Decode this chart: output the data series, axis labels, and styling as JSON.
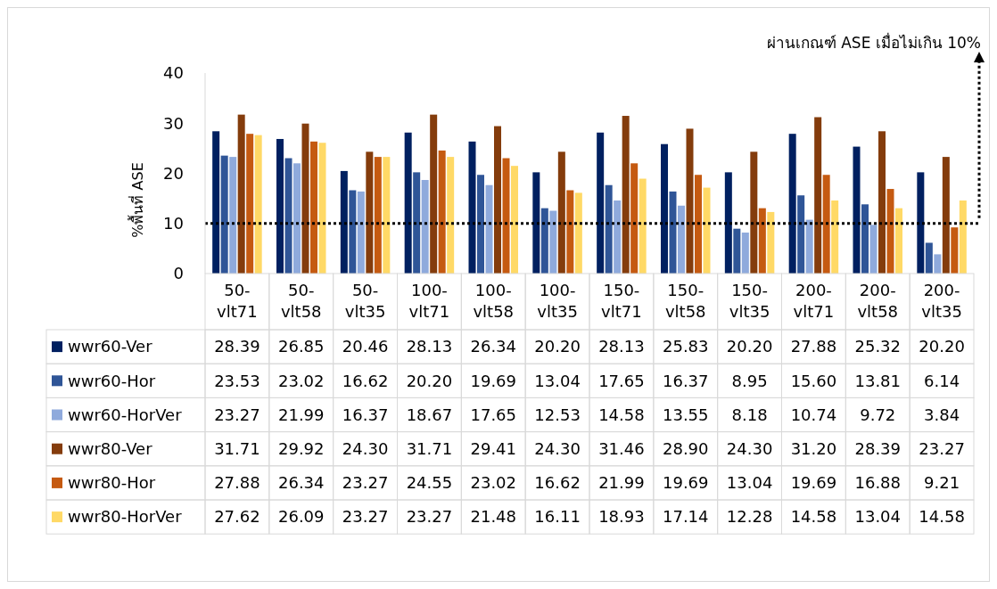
{
  "chart_data": {
    "type": "bar",
    "ylabel": "%พื้นที่ ASE",
    "ylim": [
      0,
      40
    ],
    "yticks": [
      0,
      10,
      20,
      30,
      40
    ],
    "grid": false,
    "legend": "bottom",
    "categories": [
      "50-vlt71",
      "50-vlt58",
      "50-vlt35",
      "100-vlt71",
      "100-vlt58",
      "100-vlt35",
      "150-vlt71",
      "150-vlt58",
      "150-vlt35",
      "200-vlt71",
      "200-vlt58",
      "200-vlt35"
    ],
    "series": [
      {
        "name": "wwr60-Ver",
        "color": "#002060",
        "values": [
          28.39,
          26.85,
          20.46,
          28.13,
          26.34,
          20.2,
          28.13,
          25.83,
          20.2,
          27.88,
          25.32,
          20.2
        ],
        "value_labels": [
          "28.39",
          "26.85",
          "20.46",
          "28.13",
          "26.34",
          "20.20",
          "28.13",
          "25.83",
          "20.20",
          "27.88",
          "25.32",
          "20.20"
        ]
      },
      {
        "name": "wwr60-Hor",
        "color": "#2f5597",
        "values": [
          23.53,
          23.02,
          16.62,
          20.2,
          19.69,
          13.04,
          17.65,
          16.37,
          8.95,
          15.6,
          13.81,
          6.14
        ],
        "value_labels": [
          "23.53",
          "23.02",
          "16.62",
          "20.20",
          "19.69",
          "13.04",
          "17.65",
          "16.37",
          "8.95",
          "15.60",
          "13.81",
          "6.14"
        ]
      },
      {
        "name": "wwr60-HorVer",
        "color": "#8faadc",
        "values": [
          23.27,
          21.99,
          16.37,
          18.67,
          17.65,
          12.53,
          14.58,
          13.55,
          8.18,
          10.74,
          9.72,
          3.84
        ],
        "value_labels": [
          "23.27",
          "21.99",
          "16.37",
          "18.67",
          "17.65",
          "12.53",
          "14.58",
          "13.55",
          "8.18",
          "10.74",
          "9.72",
          "3.84"
        ]
      },
      {
        "name": "wwr80-Ver",
        "color": "#843c0c",
        "values": [
          31.71,
          29.92,
          24.3,
          31.71,
          29.41,
          24.3,
          31.46,
          28.9,
          24.3,
          31.2,
          28.39,
          23.27
        ],
        "value_labels": [
          "31.71",
          "29.92",
          "24.30",
          "31.71",
          "29.41",
          "24.30",
          "31.46",
          "28.90",
          "24.30",
          "31.20",
          "28.39",
          "23.27"
        ]
      },
      {
        "name": "wwr80-Hor",
        "color": "#c55a11",
        "values": [
          27.88,
          26.34,
          23.27,
          24.55,
          23.02,
          16.62,
          21.99,
          19.69,
          13.04,
          19.69,
          16.88,
          9.21
        ],
        "value_labels": [
          "27.88",
          "26.34",
          "23.27",
          "24.55",
          "23.02",
          "16.62",
          "21.99",
          "19.69",
          "13.04",
          "19.69",
          "16.88",
          "9.21"
        ]
      },
      {
        "name": "wwr80-HorVer",
        "color": "#ffd966",
        "values": [
          27.62,
          26.09,
          23.27,
          23.27,
          21.48,
          16.11,
          18.93,
          17.14,
          12.28,
          14.58,
          13.04,
          14.58
        ],
        "value_labels": [
          "27.62",
          "26.09",
          "23.27",
          "23.27",
          "21.48",
          "16.11",
          "18.93",
          "17.14",
          "12.28",
          "14.58",
          "13.04",
          "14.58"
        ]
      }
    ],
    "ref_lines": [
      {
        "axis": "y",
        "value": 10,
        "line_style": "dotted",
        "color": "#000000"
      }
    ],
    "annotations": [
      "ผ่านเกณฑ์ ASE เมื่อไม่เกิน 10%"
    ]
  }
}
